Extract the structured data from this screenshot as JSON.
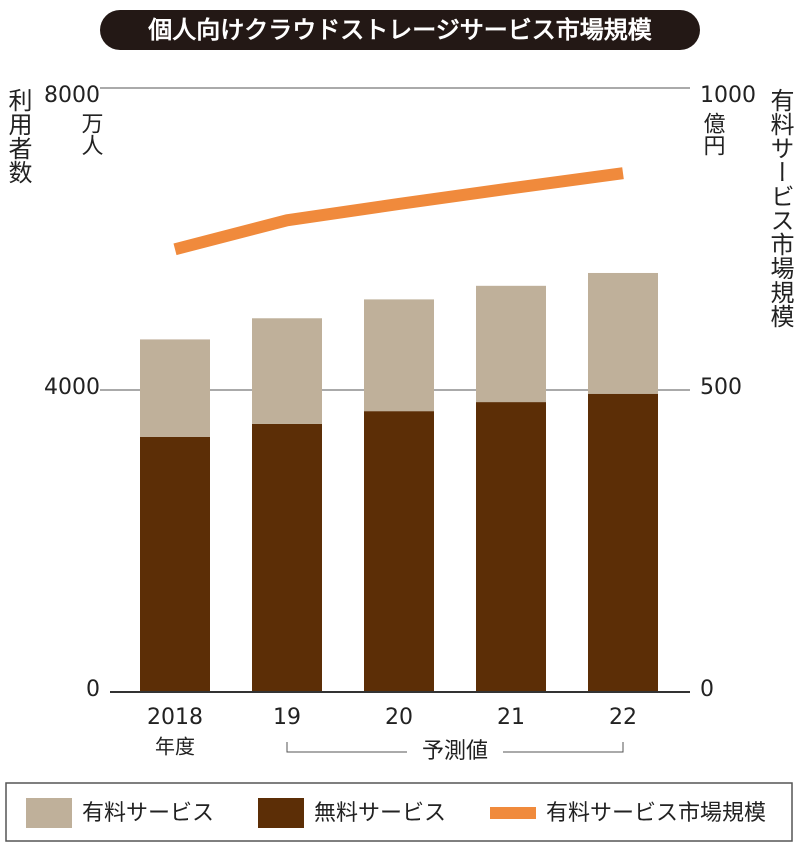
{
  "chart_data": {
    "type": "bar",
    "title": "個人向けクラウドストレージサービス市場規模",
    "y_label": "利用者数",
    "y_unit": "万人",
    "y2_label": "有料サービス市場規模",
    "y2_unit": "億円",
    "x_unit": "年度",
    "forecast_label": "予測値",
    "categories": [
      "2018",
      "19",
      "20",
      "21",
      "22"
    ],
    "forecast_start": 1,
    "series": [
      {
        "name": "有料サービス",
        "type": "bar",
        "color": "#bfb09a",
        "values": [
          1290,
          1400,
          1480,
          1540,
          1600
        ]
      },
      {
        "name": "無料サービス",
        "type": "bar",
        "color": "#5c2e06",
        "values": [
          3380,
          3550,
          3720,
          3840,
          3950
        ]
      },
      {
        "name": "有料サービス市場規模",
        "type": "line",
        "axis": "y2",
        "color": "#f08a3c",
        "values": [
          733,
          781,
          808,
          834,
          859
        ]
      }
    ],
    "ylim": [
      0,
      8000
    ],
    "yticks": [
      0,
      4000,
      8000
    ],
    "y2lim": [
      0,
      1000
    ],
    "y2ticks": [
      0,
      500,
      1000
    ],
    "grid": true,
    "legend": "bottom"
  }
}
